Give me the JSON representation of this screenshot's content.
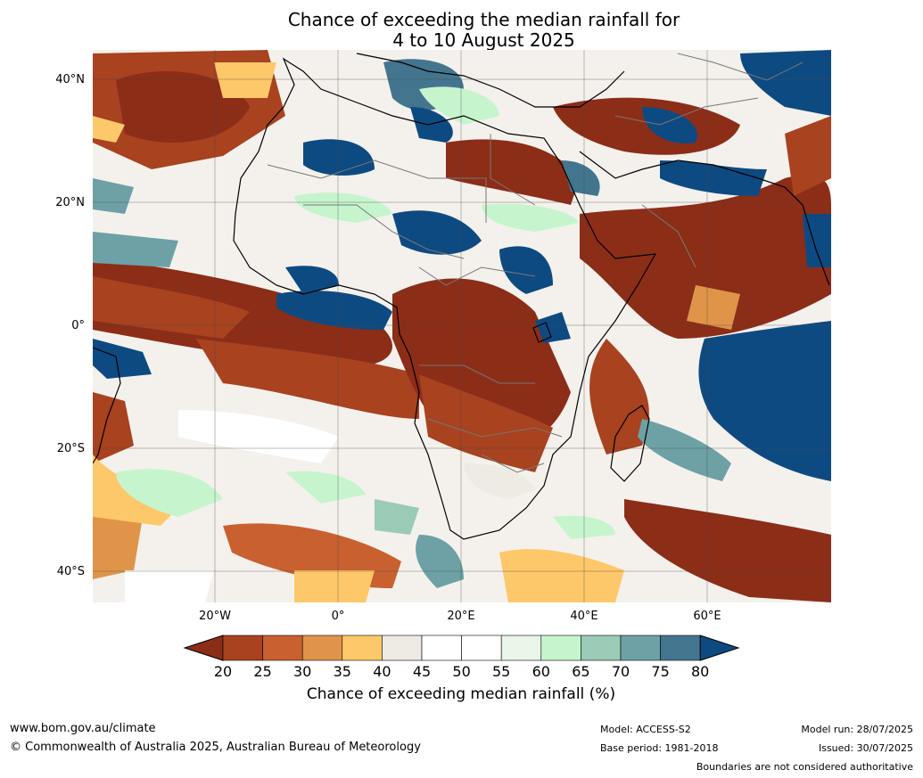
{
  "title": {
    "line1": "Chance of exceeding the median rainfall for",
    "line2": "4 to 10 August 2025"
  },
  "map": {
    "lat_labels": [
      "40°N",
      "20°N",
      "0°",
      "20°S",
      "40°S"
    ],
    "lon_labels": [
      "20°W",
      "0°",
      "20°E",
      "40°E",
      "60°E"
    ]
  },
  "colorbar": {
    "ticks": [
      "20",
      "25",
      "30",
      "35",
      "40",
      "45",
      "50",
      "55",
      "60",
      "65",
      "70",
      "75",
      "80"
    ],
    "colors": [
      "#8c2d18",
      "#a8421f",
      "#c9602f",
      "#e0944a",
      "#fdc869",
      "#eeeae4",
      "#ffffff",
      "#ffffff",
      "#e8f5e8",
      "#c6f5cd",
      "#99cbb6",
      "#6da1a6",
      "#44758f",
      "#0e4a82"
    ],
    "label": "Chance of exceeding median rainfall (%)"
  },
  "footer": {
    "website": "www.bom.gov.au/climate",
    "copyright": "© Commonwealth of Australia 2025, Australian Bureau of Meteorology",
    "model": "Model: ACCESS-S2",
    "base_period": "Base period: 1981-2018",
    "model_run": "Model run: 28/07/2025",
    "issued": "Issued: 30/07/2025",
    "disclaimer": "Boundaries are not considered authoritative"
  }
}
